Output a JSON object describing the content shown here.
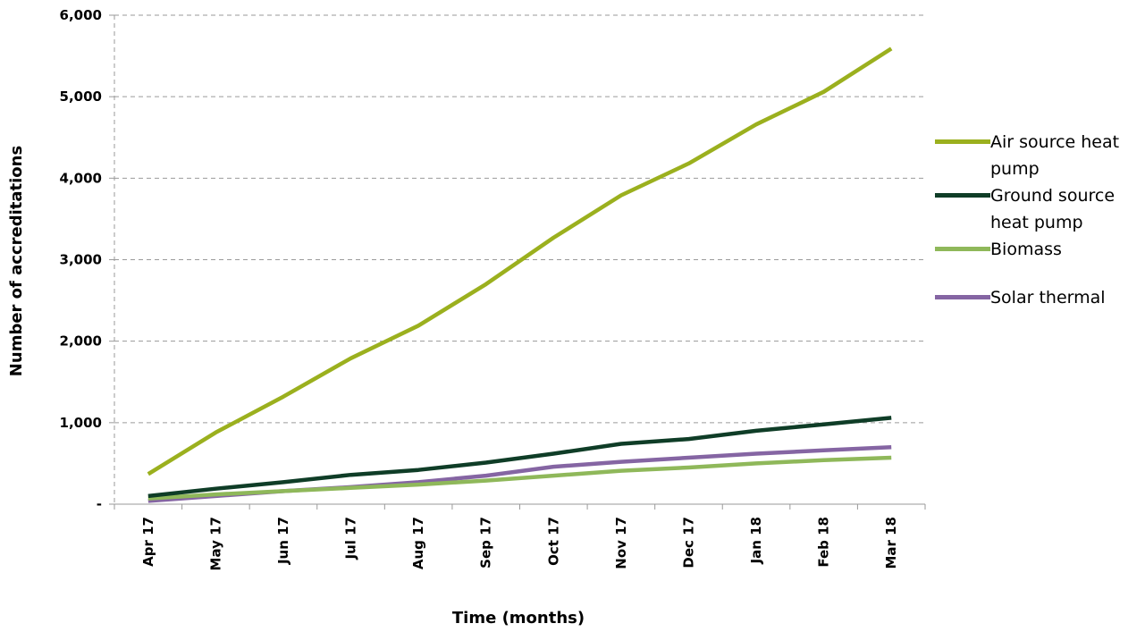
{
  "chart_data": {
    "type": "line",
    "categories": [
      "Apr 17",
      "May 17",
      "Jun 17",
      "Jul 17",
      "Aug 17",
      "Sep 17",
      "Oct 17",
      "Nov 17",
      "Dec 17",
      "Jan 18",
      "Feb 18",
      "Mar 18"
    ],
    "series": [
      {
        "name": "Air source heat pump",
        "color": "#9bb01e",
        "values": [
          370,
          880,
          1320,
          1790,
          2190,
          2700,
          3270,
          3790,
          4180,
          4660,
          5060,
          5590
        ]
      },
      {
        "name": "Ground source heat pump",
        "color": "#0f3d27",
        "values": [
          100,
          190,
          270,
          360,
          420,
          510,
          620,
          740,
          800,
          900,
          980,
          1060
        ]
      },
      {
        "name": "Biomass",
        "color": "#8fb85a",
        "values": [
          70,
          120,
          160,
          200,
          240,
          290,
          350,
          410,
          450,
          500,
          540,
          570
        ]
      },
      {
        "name": "Solar thermal",
        "color": "#8565a3",
        "values": [
          40,
          100,
          160,
          210,
          270,
          350,
          460,
          520,
          570,
          620,
          660,
          700
        ]
      }
    ],
    "yticks": [
      "-",
      "1,000",
      "2,000",
      "3,000",
      "4,000",
      "5,000",
      "6,000"
    ],
    "ylim": [
      0,
      6000
    ],
    "xlabel": "Time (months)",
    "ylabel": "Number of accreditations",
    "grid": "horizontal dashed",
    "legend_position": "right"
  }
}
